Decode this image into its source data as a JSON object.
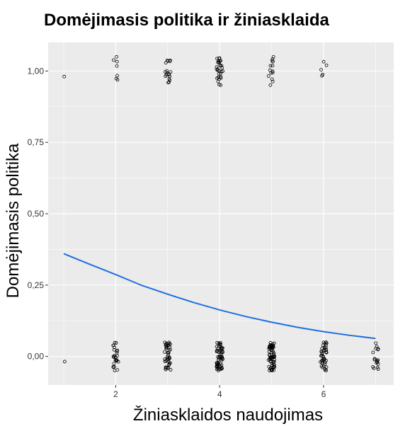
{
  "chart_data": {
    "type": "scatter",
    "title": "Domėjimasis politika ir žiniasklaida",
    "xlabel": "Žiniasklaidos naudojimas",
    "ylabel": "Domėjimasis politika",
    "xlim": [
      0.7,
      7.35
    ],
    "ylim": [
      -0.1,
      1.1
    ],
    "x_ticks": [
      2,
      4,
      6
    ],
    "x_tick_labels": [
      "2",
      "4",
      "6"
    ],
    "y_ticks": [
      0,
      0.25,
      0.5,
      0.75,
      1
    ],
    "y_tick_labels": [
      "0,00",
      "0,25",
      "0,50",
      "0,75",
      "1,00"
    ],
    "grid": true,
    "panel_background": "#EBEBEB",
    "point_color": "#000000",
    "line_color": "#1F6FE0",
    "series": [
      {
        "name": "",
        "kind": "points",
        "clusters": [
          {
            "x": 1,
            "y": 1,
            "count": 1,
            "spread": 0.03
          },
          {
            "x": 2,
            "y": 1,
            "count": 7,
            "spread": 0.06
          },
          {
            "x": 3,
            "y": 1,
            "count": 18,
            "spread": 0.06
          },
          {
            "x": 4,
            "y": 1,
            "count": 30,
            "spread": 0.06
          },
          {
            "x": 5,
            "y": 1,
            "count": 14,
            "spread": 0.06
          },
          {
            "x": 6,
            "y": 1,
            "count": 5,
            "spread": 0.06
          },
          {
            "x": 1,
            "y": 0,
            "count": 1,
            "spread": 0.03
          },
          {
            "x": 2,
            "y": 0,
            "count": 25,
            "spread": 0.06
          },
          {
            "x": 3,
            "y": 0,
            "count": 45,
            "spread": 0.06
          },
          {
            "x": 4,
            "y": 0,
            "count": 60,
            "spread": 0.06
          },
          {
            "x": 5,
            "y": 0,
            "count": 70,
            "spread": 0.06
          },
          {
            "x": 6,
            "y": 0,
            "count": 45,
            "spread": 0.06
          },
          {
            "x": 7,
            "y": 0,
            "count": 18,
            "spread": 0.06
          }
        ]
      },
      {
        "name": "",
        "kind": "fitted-line",
        "x": [
          1,
          1.5,
          2,
          2.5,
          3,
          3.5,
          4,
          4.5,
          5,
          5.5,
          6,
          6.5,
          7
        ],
        "y": [
          0.36,
          0.323,
          0.287,
          0.249,
          0.218,
          0.189,
          0.163,
          0.14,
          0.12,
          0.102,
          0.087,
          0.074,
          0.063
        ]
      }
    ]
  }
}
